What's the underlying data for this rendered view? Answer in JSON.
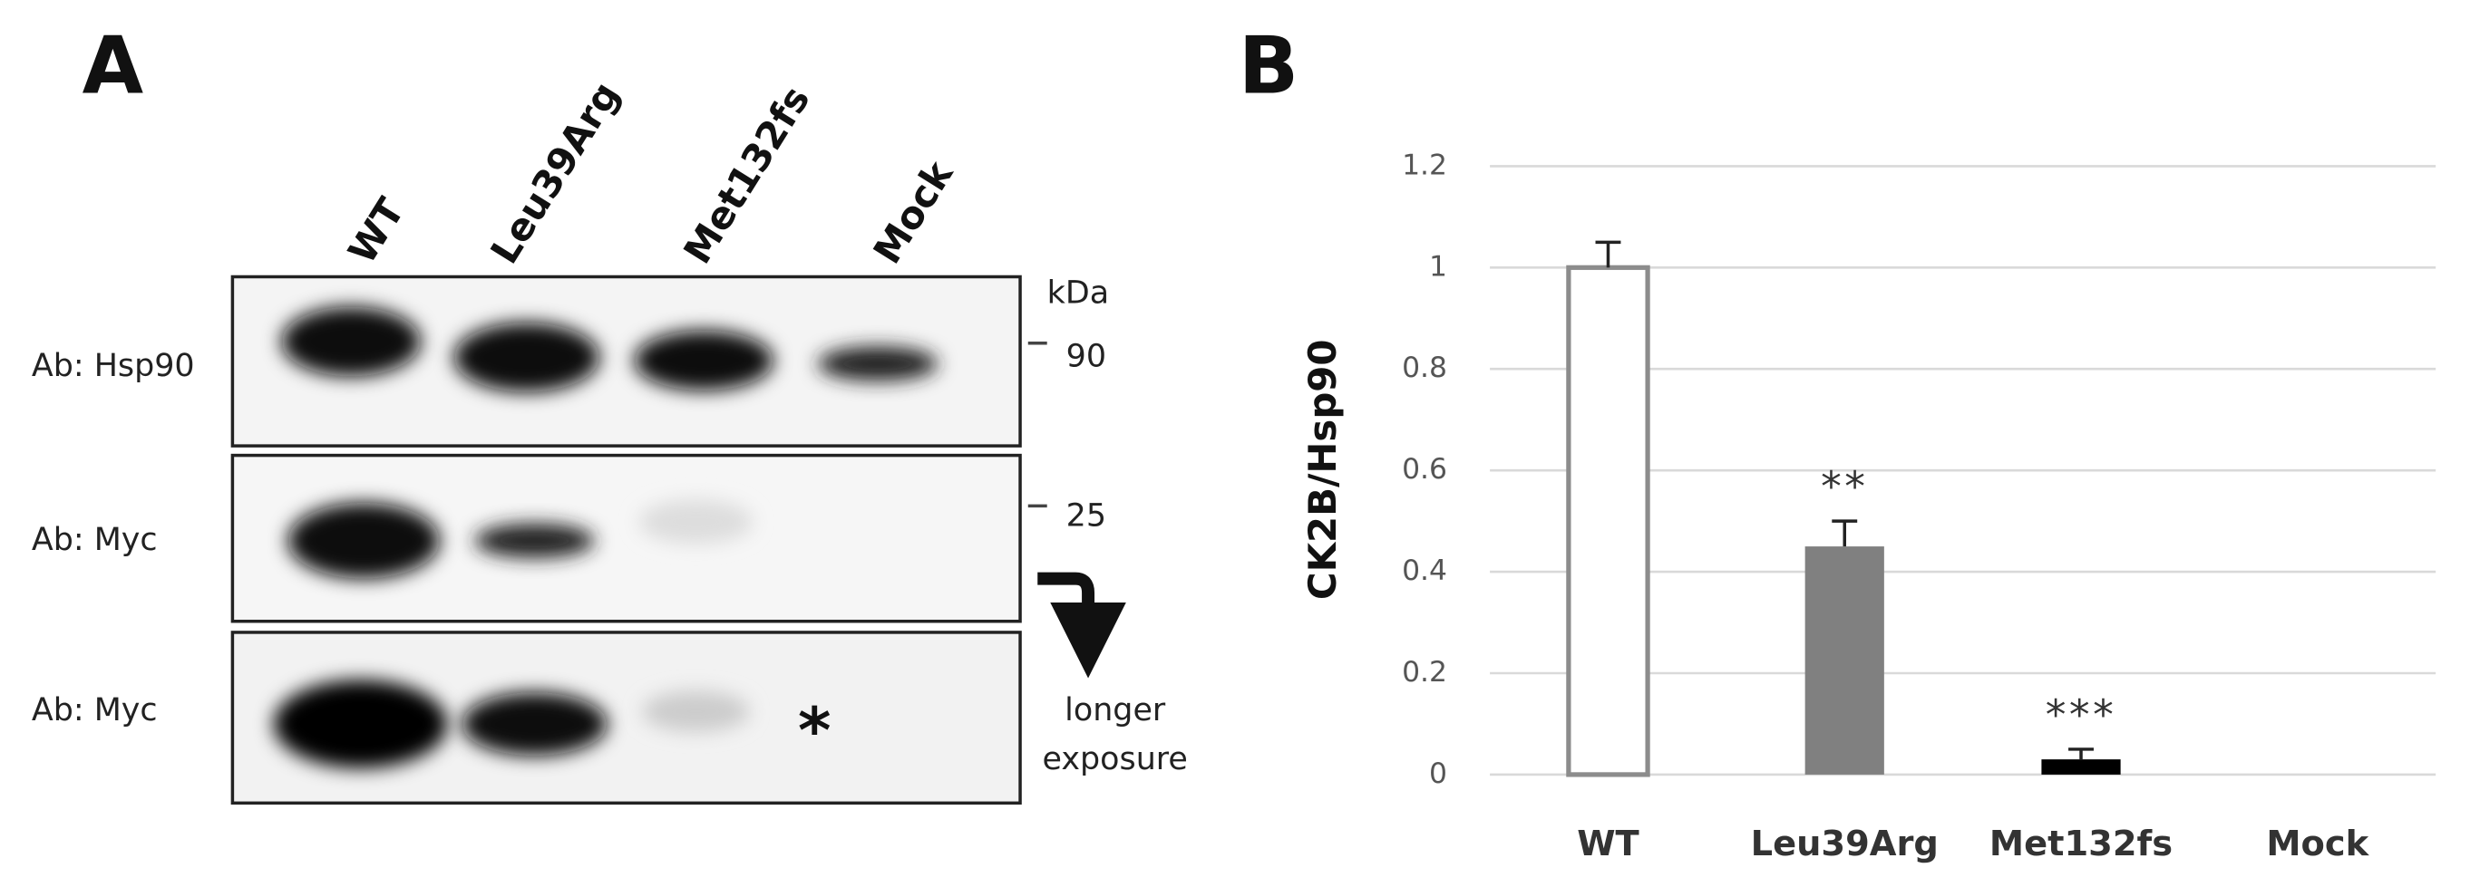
{
  "panel_a": {
    "panel_label": "A",
    "lanes": [
      "WT",
      "Leu39Arg",
      "Met132fs",
      "Mock"
    ],
    "rows": [
      "Ab: Hsp90",
      "Ab: Myc",
      "Ab: Myc"
    ],
    "kda_label": "kDa",
    "markers": [
      90,
      25
    ],
    "arrow_label": [
      "longer",
      "exposure"
    ],
    "asterisk": "*"
  },
  "chart_data": {
    "type": "bar",
    "panel_label": "B",
    "ylabel": "CK2B/Hsp90",
    "categories": [
      "WT",
      "Leu39Arg",
      "Met132fs",
      "Mock"
    ],
    "values": [
      1,
      0.45,
      0.03,
      0
    ],
    "errors": [
      0.05,
      0.05,
      0.02,
      null
    ],
    "colors": [
      "#ffffff",
      "#808080",
      "#000000",
      "#000000"
    ],
    "edge_color": "#8c8c8c",
    "significance": [
      null,
      "**",
      "***",
      null
    ],
    "ylim": [
      0,
      1.2
    ],
    "yticks": [
      0,
      0.2,
      0.4,
      0.6,
      0.8,
      1,
      1.2
    ],
    "grid": true
  }
}
